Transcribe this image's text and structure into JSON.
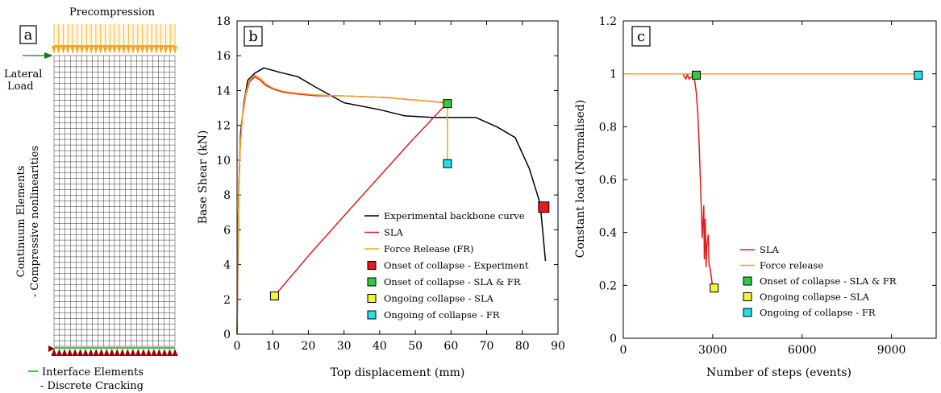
{
  "panel_a": {
    "letter": "a",
    "precompression_label": "Precompression",
    "lateral_label_line1": "Lateral",
    "lateral_label_line2": "Load",
    "continuum_label_line1": "Continuum Elements",
    "continuum_label_line2": "- Compressive nonlinearities",
    "interface_label_line1": "Interface Elements",
    "interface_label_line2": "- Discrete Cracking",
    "colors": {
      "precompression": "#f5a623",
      "lateral_load": "#1a7a1a",
      "support": "#a00000",
      "interface": "#2ecc40"
    }
  },
  "chart_data": [
    {
      "type": "line",
      "panel_letter": "b",
      "xlabel": "Top displacement (mm)",
      "ylabel": "Base Shear (kN)",
      "xlim": [
        0,
        90
      ],
      "ylim": [
        0,
        18
      ],
      "xticks": [
        "0",
        "10",
        "20",
        "30",
        "40",
        "50",
        "60",
        "70",
        "80",
        "90"
      ],
      "yticks": [
        "0",
        "2",
        "4",
        "6",
        "8",
        "10",
        "12",
        "14",
        "16",
        "18"
      ],
      "legend_position": "lower-right",
      "series": [
        {
          "name": "Experimental backbone curve",
          "color": "#000000",
          "x": [
            0,
            0.5,
            1,
            2,
            3,
            5,
            7.5,
            12,
            17,
            22,
            30,
            40,
            47,
            55,
            60,
            67,
            73,
            78,
            82,
            85,
            86.5
          ],
          "y": [
            0,
            8.5,
            11.6,
            13.4,
            14.6,
            15.0,
            15.3,
            15.05,
            14.8,
            14.2,
            13.3,
            12.9,
            12.55,
            12.45,
            12.45,
            12.45,
            11.9,
            11.3,
            9.5,
            7.5,
            4.2
          ]
        },
        {
          "name": "SLA",
          "color": "#e41a1c",
          "x": [
            0,
            0.3,
            0.8,
            1.5,
            2.5,
            3.5,
            5,
            6.5,
            8,
            10,
            13,
            17,
            22,
            28,
            35,
            42,
            50,
            56,
            59,
            48,
            30,
            20,
            10.5
          ],
          "y": [
            0,
            6.5,
            10.5,
            12.5,
            13.8,
            14.5,
            14.8,
            14.6,
            14.3,
            14.1,
            13.9,
            13.8,
            13.7,
            13.7,
            13.65,
            13.6,
            13.45,
            13.35,
            13.3,
            10.9,
            6.8,
            4.5,
            2.2
          ]
        },
        {
          "name": "Force Release (FR)",
          "color": "#f5a623",
          "x": [
            0,
            0.3,
            0.8,
            1.5,
            2.5,
            3.5,
            5,
            6.5,
            8,
            10,
            13,
            17,
            22,
            28,
            35,
            42,
            50,
            56,
            59,
            59
          ],
          "y": [
            0,
            6.3,
            10.3,
            12.5,
            13.9,
            14.6,
            14.9,
            14.7,
            14.4,
            14.15,
            13.95,
            13.85,
            13.75,
            13.7,
            13.65,
            13.6,
            13.45,
            13.35,
            13.25,
            9.8
          ]
        }
      ],
      "markers": [
        {
          "name": "Onset of collapse - Experiment",
          "color": "#e41a1c",
          "x": 86,
          "y": 7.3
        },
        {
          "name": "Onset of collapse - SLA & FR",
          "color": "#2ecc40",
          "x": 59,
          "y": 13.25
        },
        {
          "name": "Ongoing collapse - SLA",
          "color": "#f5f532",
          "x": 10.5,
          "y": 2.2
        },
        {
          "name": "Ongoing of collapse - FR",
          "color": "#22e0ea",
          "x": 59,
          "y": 9.8
        }
      ]
    },
    {
      "type": "line",
      "panel_letter": "c",
      "xlabel": "Number of steps (events)",
      "ylabel": "Constant load (Normalised)",
      "xlim": [
        0,
        10500
      ],
      "ylim": [
        0,
        1.2
      ],
      "xticks": [
        0,
        3000,
        6000,
        9000
      ],
      "xtick_labels": [
        "0",
        "3000",
        "6000",
        "9000"
      ],
      "yticks": [
        0,
        0.2,
        0.4,
        0.6,
        0.8,
        1,
        1.2
      ],
      "ytick_labels": [
        "0",
        "0.2",
        "0.4",
        "0.6",
        "0.8",
        "1",
        "1.2"
      ],
      "legend_position": "lower-center",
      "series": [
        {
          "name": "SLA",
          "color": "#e41a1c",
          "x": [
            0,
            2000,
            2100,
            2150,
            2200,
            2300,
            2350,
            2400,
            2450,
            2500,
            2550,
            2600,
            2650,
            2700,
            2720,
            2750,
            2780,
            2800,
            2850,
            2880,
            2920,
            3000
          ],
          "y": [
            1,
            1,
            0.98,
            1,
            0.98,
            0.99,
            1,
            0.97,
            0.93,
            0.85,
            0.72,
            0.55,
            0.38,
            0.5,
            0.3,
            0.45,
            0.27,
            0.35,
            0.39,
            0.28,
            0.26,
            0.19
          ]
        },
        {
          "name": "Force release",
          "color": "#f5a623",
          "x": [
            0,
            9900
          ],
          "y": [
            1,
            1
          ]
        }
      ],
      "markers": [
        {
          "name": "Onset of collapse - SLA & FR",
          "color": "#2ecc40",
          "x": 2450,
          "y": 0.995
        },
        {
          "name": "Ongoing collapse - SLA",
          "color": "#f5f532",
          "x": 3050,
          "y": 0.19
        },
        {
          "name": "Ongoing of collapse - FR",
          "color": "#22e0ea",
          "x": 9900,
          "y": 0.995
        }
      ]
    }
  ]
}
